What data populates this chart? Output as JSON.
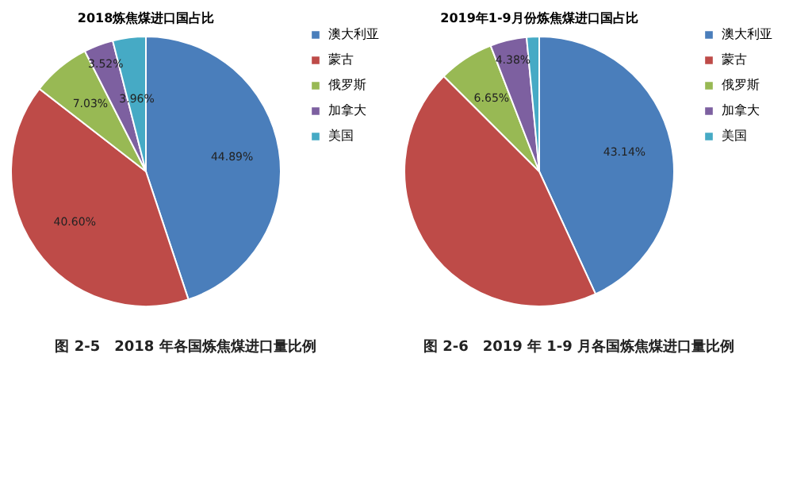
{
  "chart_data": [
    {
      "type": "pie",
      "title": "2018炼焦煤进口国占比",
      "categories": [
        "澳大利亚",
        "蒙古",
        "俄罗斯",
        "加拿大",
        "美国"
      ],
      "values": [
        44.89,
        40.6,
        7.03,
        3.52,
        3.96
      ],
      "colors": [
        "#4a7ebb",
        "#be4b48",
        "#98b954",
        "#7d60a0",
        "#46aac5"
      ],
      "value_labels": [
        "44.89%",
        "40.60%",
        "7.03%",
        "3.52%",
        "3.96%"
      ],
      "legend": "right",
      "annotations": [
        "图 2-5　2018 年各国炼焦煤进口量比例"
      ]
    },
    {
      "type": "pie",
      "title": "2019年1-9月份炼焦煤进口国占比",
      "categories": [
        "澳大利亚",
        "蒙古",
        "俄罗斯",
        "加拿大",
        "美国"
      ],
      "values": [
        43.14,
        44.33,
        6.65,
        4.38,
        1.5
      ],
      "colors": [
        "#4a7ebb",
        "#be4b48",
        "#98b954",
        "#7d60a0",
        "#46aac5"
      ],
      "value_labels": [
        "43.14%",
        null,
        "6.65%",
        "4.38%",
        null
      ],
      "legend": "right",
      "annotations": [
        "图 2-6　2019 年 1-9 月各国炼焦煤进口量比例"
      ]
    }
  ]
}
